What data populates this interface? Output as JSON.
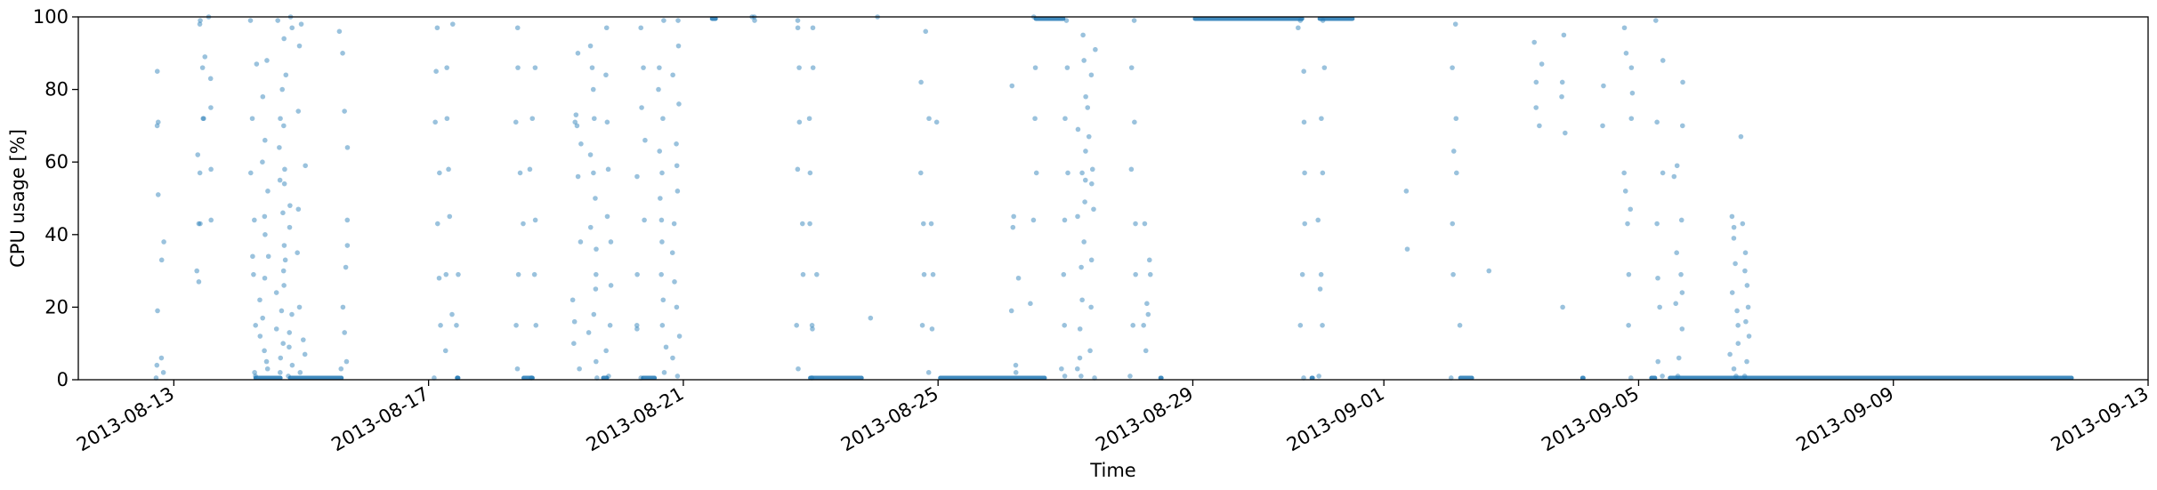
{
  "chart_data": {
    "type": "scatter",
    "title": "",
    "xlabel": "Time",
    "ylabel": "CPU usage [%]",
    "xlim": [
      "2013-08-11T12:00",
      "2013-09-13T00:00"
    ],
    "ylim": [
      0,
      100
    ],
    "grid": false,
    "legend": "none",
    "point_color": "#1f77b4",
    "x_ticks": [
      {
        "date": "2013-08-13",
        "label": "2013-08-13"
      },
      {
        "date": "2013-08-17",
        "label": "2013-08-17"
      },
      {
        "date": "2013-08-21",
        "label": "2013-08-21"
      },
      {
        "date": "2013-08-25",
        "label": "2013-08-25"
      },
      {
        "date": "2013-08-29",
        "label": "2013-08-29"
      },
      {
        "date": "2013-09-01",
        "label": "2013-09-01"
      },
      {
        "date": "2013-09-05",
        "label": "2013-09-05"
      },
      {
        "date": "2013-09-09",
        "label": "2013-09-09"
      },
      {
        "date": "2013-09-13",
        "label": "2013-09-13"
      }
    ],
    "y_ticks": [
      0,
      20,
      40,
      60,
      80,
      100
    ],
    "baseline_segments": [
      {
        "start": "2013-08-14T06:00",
        "end": "2013-08-14T17:00",
        "y": 0.5
      },
      {
        "start": "2013-08-14T19:00",
        "end": "2013-08-15T16:00",
        "y": 0.5
      },
      {
        "start": "2013-08-17T10:00",
        "end": "2013-08-17T12:00",
        "y": 0.5
      },
      {
        "start": "2013-08-18T11:00",
        "end": "2013-08-18T16:00",
        "y": 0.5
      },
      {
        "start": "2013-08-19T17:00",
        "end": "2013-08-19T20:00",
        "y": 0.5
      },
      {
        "start": "2013-08-20T08:00",
        "end": "2013-08-20T14:00",
        "y": 0.5
      },
      {
        "start": "2013-08-22T23:00",
        "end": "2013-08-23T20:00",
        "y": 0.5
      },
      {
        "start": "2013-08-25T00:00",
        "end": "2013-08-26T17:00",
        "y": 0.5
      },
      {
        "start": "2013-08-28T11:00",
        "end": "2013-08-28T13:00",
        "y": 0.5
      },
      {
        "start": "2013-08-30T20:00",
        "end": "2013-08-30T22:00",
        "y": 0.5
      },
      {
        "start": "2013-09-02T04:00",
        "end": "2013-09-02T10:00",
        "y": 0.5
      },
      {
        "start": "2013-09-04T02:00",
        "end": "2013-09-04T04:00",
        "y": 0.5
      },
      {
        "start": "2013-09-05T04:00",
        "end": "2013-09-05T07:00",
        "y": 0.5
      },
      {
        "start": "2013-09-05T11:00",
        "end": "2013-09-11T20:00",
        "y": 0.5
      },
      {
        "start": "2013-08-26T12:00",
        "end": "2013-08-27T00:00",
        "y": 99.5
      },
      {
        "start": "2013-08-29T00:00",
        "end": "2013-08-30T18:00",
        "y": 99.5
      },
      {
        "start": "2013-08-30T23:00",
        "end": "2013-08-31T13:00",
        "y": 99.5
      },
      {
        "start": "2013-08-21T10:00",
        "end": "2013-08-21T13:00",
        "y": 99.5
      }
    ],
    "columns": [
      {
        "t": "2013-08-12T19:00",
        "y": [
          0.5,
          2,
          4,
          6,
          19,
          33,
          38,
          51,
          70,
          71,
          85
        ]
      },
      {
        "t": "2013-08-13T10:00",
        "y": [
          27,
          30,
          43,
          43,
          57,
          62,
          72,
          72,
          86,
          98,
          99
        ]
      },
      {
        "t": "2013-08-13T13:00",
        "y": [
          44,
          58,
          75,
          83,
          89,
          100
        ]
      },
      {
        "t": "2013-08-14T06:00",
        "y": [
          1,
          2,
          15,
          29,
          34,
          44,
          57,
          72,
          87,
          99
        ]
      },
      {
        "t": "2013-08-14T10:00",
        "y": [
          3,
          5,
          8,
          12,
          17,
          22,
          28,
          34,
          40,
          45,
          52,
          60,
          66,
          78,
          88
        ]
      },
      {
        "t": "2013-08-14T16:00",
        "y": [
          2,
          6,
          10,
          14,
          19,
          24,
          30,
          37,
          46,
          55,
          64,
          72,
          80,
          94,
          99
        ]
      },
      {
        "t": "2013-08-14T19:00",
        "y": [
          1,
          4,
          9,
          13,
          18,
          26,
          33,
          42,
          48,
          54,
          58,
          70,
          84,
          97,
          100
        ]
      },
      {
        "t": "2013-08-15T00:00",
        "y": [
          2,
          7,
          11,
          20,
          35,
          47,
          59,
          74,
          92,
          98
        ]
      },
      {
        "t": "2013-08-15T16:00",
        "y": [
          3,
          5,
          13,
          20,
          31,
          37,
          44,
          64,
          74,
          90,
          96
        ]
      },
      {
        "t": "2013-08-17T03:00",
        "y": [
          0.5,
          15,
          28,
          43,
          57,
          71,
          85,
          97
        ]
      },
      {
        "t": "2013-08-17T08:00",
        "y": [
          8,
          18,
          29,
          45,
          58,
          72,
          86,
          98
        ]
      },
      {
        "t": "2013-08-17T10:00",
        "y": [
          0.5,
          15,
          29
        ]
      },
      {
        "t": "2013-08-18T10:00",
        "y": [
          3,
          15,
          29,
          43,
          57,
          71,
          86,
          97
        ]
      },
      {
        "t": "2013-08-18T15:00",
        "y": [
          0.5,
          15,
          29,
          44,
          58,
          72,
          86
        ]
      },
      {
        "t": "2013-08-19T08:00",
        "y": [
          3,
          10,
          16,
          22,
          38,
          56,
          65,
          70,
          71,
          73,
          90
        ]
      },
      {
        "t": "2013-08-19T14:00",
        "y": [
          0.5,
          5,
          13,
          18,
          25,
          29,
          36,
          42,
          50,
          57,
          62,
          72,
          80,
          86,
          92
        ]
      },
      {
        "t": "2013-08-19T20:00",
        "y": [
          1,
          8,
          15,
          26,
          38,
          45,
          58,
          71,
          84,
          97
        ]
      },
      {
        "t": "2013-08-20T08:00",
        "y": [
          0.5,
          14,
          15,
          29,
          44,
          56,
          66,
          75,
          86,
          97
        ]
      },
      {
        "t": "2013-08-20T16:00",
        "y": [
          2,
          9,
          15,
          22,
          29,
          38,
          44,
          50,
          57,
          63,
          72,
          80,
          86,
          99
        ]
      },
      {
        "t": "2013-08-20T21:00",
        "y": [
          1,
          6,
          12,
          20,
          27,
          35,
          43,
          52,
          59,
          65,
          76,
          84,
          92,
          99
        ]
      },
      {
        "t": "2013-08-22T02:00",
        "y": [
          99,
          100,
          100
        ]
      },
      {
        "t": "2013-08-22T20:00",
        "y": [
          3,
          15,
          29,
          43,
          58,
          71,
          86,
          97,
          99
        ]
      },
      {
        "t": "2013-08-23T01:00",
        "y": [
          0.5,
          14,
          15,
          29,
          43,
          57,
          72,
          86,
          97
        ]
      },
      {
        "t": "2013-08-24T00:00",
        "y": [
          17,
          100
        ]
      },
      {
        "t": "2013-08-24T19:00",
        "y": [
          2,
          15,
          29,
          43,
          57,
          72,
          82,
          96
        ]
      },
      {
        "t": "2013-08-24T22:00",
        "y": [
          14,
          29,
          43,
          71
        ]
      },
      {
        "t": "2013-08-26T05:00",
        "y": [
          2,
          4,
          19,
          28,
          42,
          45,
          81
        ]
      },
      {
        "t": "2013-08-26T12:00",
        "y": [
          21,
          44,
          57,
          72,
          86,
          100
        ]
      },
      {
        "t": "2013-08-27T00:00",
        "y": [
          1,
          3,
          15,
          29,
          44,
          57,
          72,
          86,
          99
        ]
      },
      {
        "t": "2013-08-27T06:00",
        "y": [
          1,
          3,
          6,
          14,
          22,
          31,
          38,
          45,
          49,
          55,
          57,
          63,
          69,
          78,
          88,
          95
        ]
      },
      {
        "t": "2013-08-27T10:00",
        "y": [
          0.5,
          8,
          20,
          33,
          47,
          54,
          58,
          67,
          75,
          84,
          91
        ]
      },
      {
        "t": "2013-08-28T01:00",
        "y": [
          1,
          15,
          29,
          43,
          58,
          71,
          86,
          99
        ]
      },
      {
        "t": "2013-08-28T07:00",
        "y": [
          8,
          15,
          18,
          21,
          29,
          33,
          43
        ]
      },
      {
        "t": "2013-08-30T17:00",
        "y": [
          0.5,
          15,
          29,
          43,
          57,
          71,
          85,
          97,
          99
        ]
      },
      {
        "t": "2013-08-31T00:00",
        "y": [
          1,
          15,
          25,
          29,
          44,
          57,
          72,
          86,
          99
        ]
      },
      {
        "t": "2013-09-01T10:00",
        "y": [
          36,
          52
        ]
      },
      {
        "t": "2013-09-02T03:00",
        "y": [
          0.5,
          15,
          29,
          43,
          57,
          63,
          72,
          86,
          98
        ]
      },
      {
        "t": "2013-09-02T17:00",
        "y": [
          30
        ]
      },
      {
        "t": "2013-09-03T10:00",
        "y": [
          70,
          75,
          82,
          87,
          93
        ]
      },
      {
        "t": "2013-09-03T19:00",
        "y": [
          20,
          68,
          78,
          82,
          95
        ]
      },
      {
        "t": "2013-09-04T12:00",
        "y": [
          70,
          81
        ]
      },
      {
        "t": "2013-09-04T20:00",
        "y": [
          0.5,
          15,
          29,
          43,
          47,
          52,
          57,
          72,
          79,
          86,
          90,
          97
        ]
      },
      {
        "t": "2013-09-05T08:00",
        "y": [
          1,
          5,
          20,
          28,
          43,
          57,
          71,
          88,
          99
        ]
      },
      {
        "t": "2013-09-05T15:00",
        "y": [
          1,
          6,
          14,
          21,
          24,
          29,
          35,
          44,
          56,
          59,
          70,
          82
        ]
      },
      {
        "t": "2013-09-06T12:00",
        "y": [
          1,
          3,
          7,
          10,
          15,
          19,
          24,
          32,
          39,
          42,
          45
        ]
      },
      {
        "t": "2013-09-06T16:00",
        "y": [
          1,
          5,
          12,
          16,
          20,
          26,
          30,
          35,
          43,
          67
        ]
      }
    ]
  }
}
